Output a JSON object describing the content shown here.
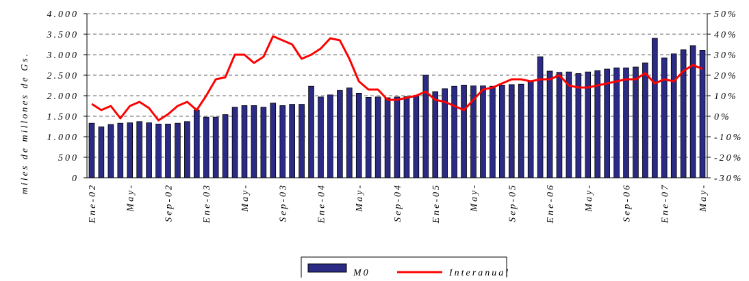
{
  "chart_data": {
    "type": "bar_line",
    "y_axis_label": "miles de millones de Gs.",
    "categories": [
      "Ene-02",
      null,
      null,
      null,
      "May-",
      null,
      null,
      null,
      "Sep-02",
      null,
      null,
      null,
      "Ene-03",
      null,
      null,
      null,
      "May-",
      null,
      null,
      null,
      "Sep-03",
      null,
      null,
      null,
      "Ene-04",
      null,
      null,
      null,
      "May-",
      null,
      null,
      null,
      "Sep-04",
      null,
      null,
      null,
      "Ene-05",
      null,
      null,
      null,
      "May-",
      null,
      null,
      null,
      "Sep-05",
      null,
      null,
      null,
      "Ene-06",
      null,
      null,
      null,
      "May-",
      null,
      null,
      null,
      "Sep-06",
      null,
      null,
      null,
      "Ene-07",
      null,
      null,
      null,
      "May-"
    ],
    "series": [
      {
        "name": "M0",
        "type": "bar",
        "axis": "y",
        "color": "#2b2b85",
        "values": [
          1330,
          1240,
          1300,
          1330,
          1340,
          1370,
          1340,
          1310,
          1310,
          1330,
          1370,
          1650,
          1480,
          1480,
          1540,
          1720,
          1760,
          1760,
          1720,
          1820,
          1760,
          1790,
          1790,
          2230,
          1970,
          2020,
          2130,
          2190,
          2060,
          1960,
          1970,
          1950,
          1970,
          1980,
          1990,
          2500,
          2100,
          2170,
          2230,
          2260,
          2240,
          2240,
          2230,
          2260,
          2270,
          2280,
          2340,
          2950,
          2600,
          2570,
          2580,
          2540,
          2580,
          2610,
          2650,
          2680,
          2680,
          2700,
          2800,
          3400,
          2920,
          3020,
          3120,
          3220,
          3110
        ]
      },
      {
        "name": "Interanual",
        "type": "line",
        "axis": "y2",
        "color": "#ff0000",
        "values": [
          6,
          3,
          5,
          -1,
          5,
          7,
          4,
          -2,
          1,
          5,
          7,
          3,
          10,
          18,
          19,
          30,
          30,
          26,
          29,
          39,
          37,
          35,
          28,
          30,
          33,
          38,
          37,
          28,
          17,
          13,
          13,
          8,
          8,
          9,
          10,
          12,
          8,
          7,
          5,
          3,
          8,
          13,
          14,
          16,
          18,
          18,
          17,
          18,
          18,
          20,
          15,
          14,
          14,
          15,
          16,
          17,
          18,
          18,
          21,
          16,
          18,
          17,
          22,
          25,
          23
        ]
      }
    ],
    "ylim": [
      0,
      4000
    ],
    "yticks": [
      0,
      {
        "value": 500,
        "label": "500"
      },
      {
        "value": 1000,
        "label": "1.000"
      },
      {
        "value": 1500,
        "label": "1.500"
      },
      {
        "value": 2000,
        "label": "2.000"
      },
      {
        "value": 2500,
        "label": "2.500"
      },
      {
        "value": 3000,
        "label": "3.000"
      },
      {
        "value": 3500,
        "label": "3.500"
      },
      {
        "value": 4000,
        "label": "4.000"
      }
    ],
    "y2lim": [
      -30,
      50
    ],
    "y2ticks": [
      {
        "value": -30,
        "label": "-30%"
      },
      {
        "value": -20,
        "label": "-20%"
      },
      {
        "value": -10,
        "label": "-10%"
      },
      {
        "value": 0,
        "label": "0%"
      },
      {
        "value": 10,
        "label": "10%"
      },
      {
        "value": 20,
        "label": "20%"
      },
      {
        "value": 30,
        "label": "30%"
      },
      {
        "value": 40,
        "label": "40%"
      },
      {
        "value": 50,
        "label": "50%"
      }
    ],
    "grid": true,
    "legend": "bottom"
  }
}
